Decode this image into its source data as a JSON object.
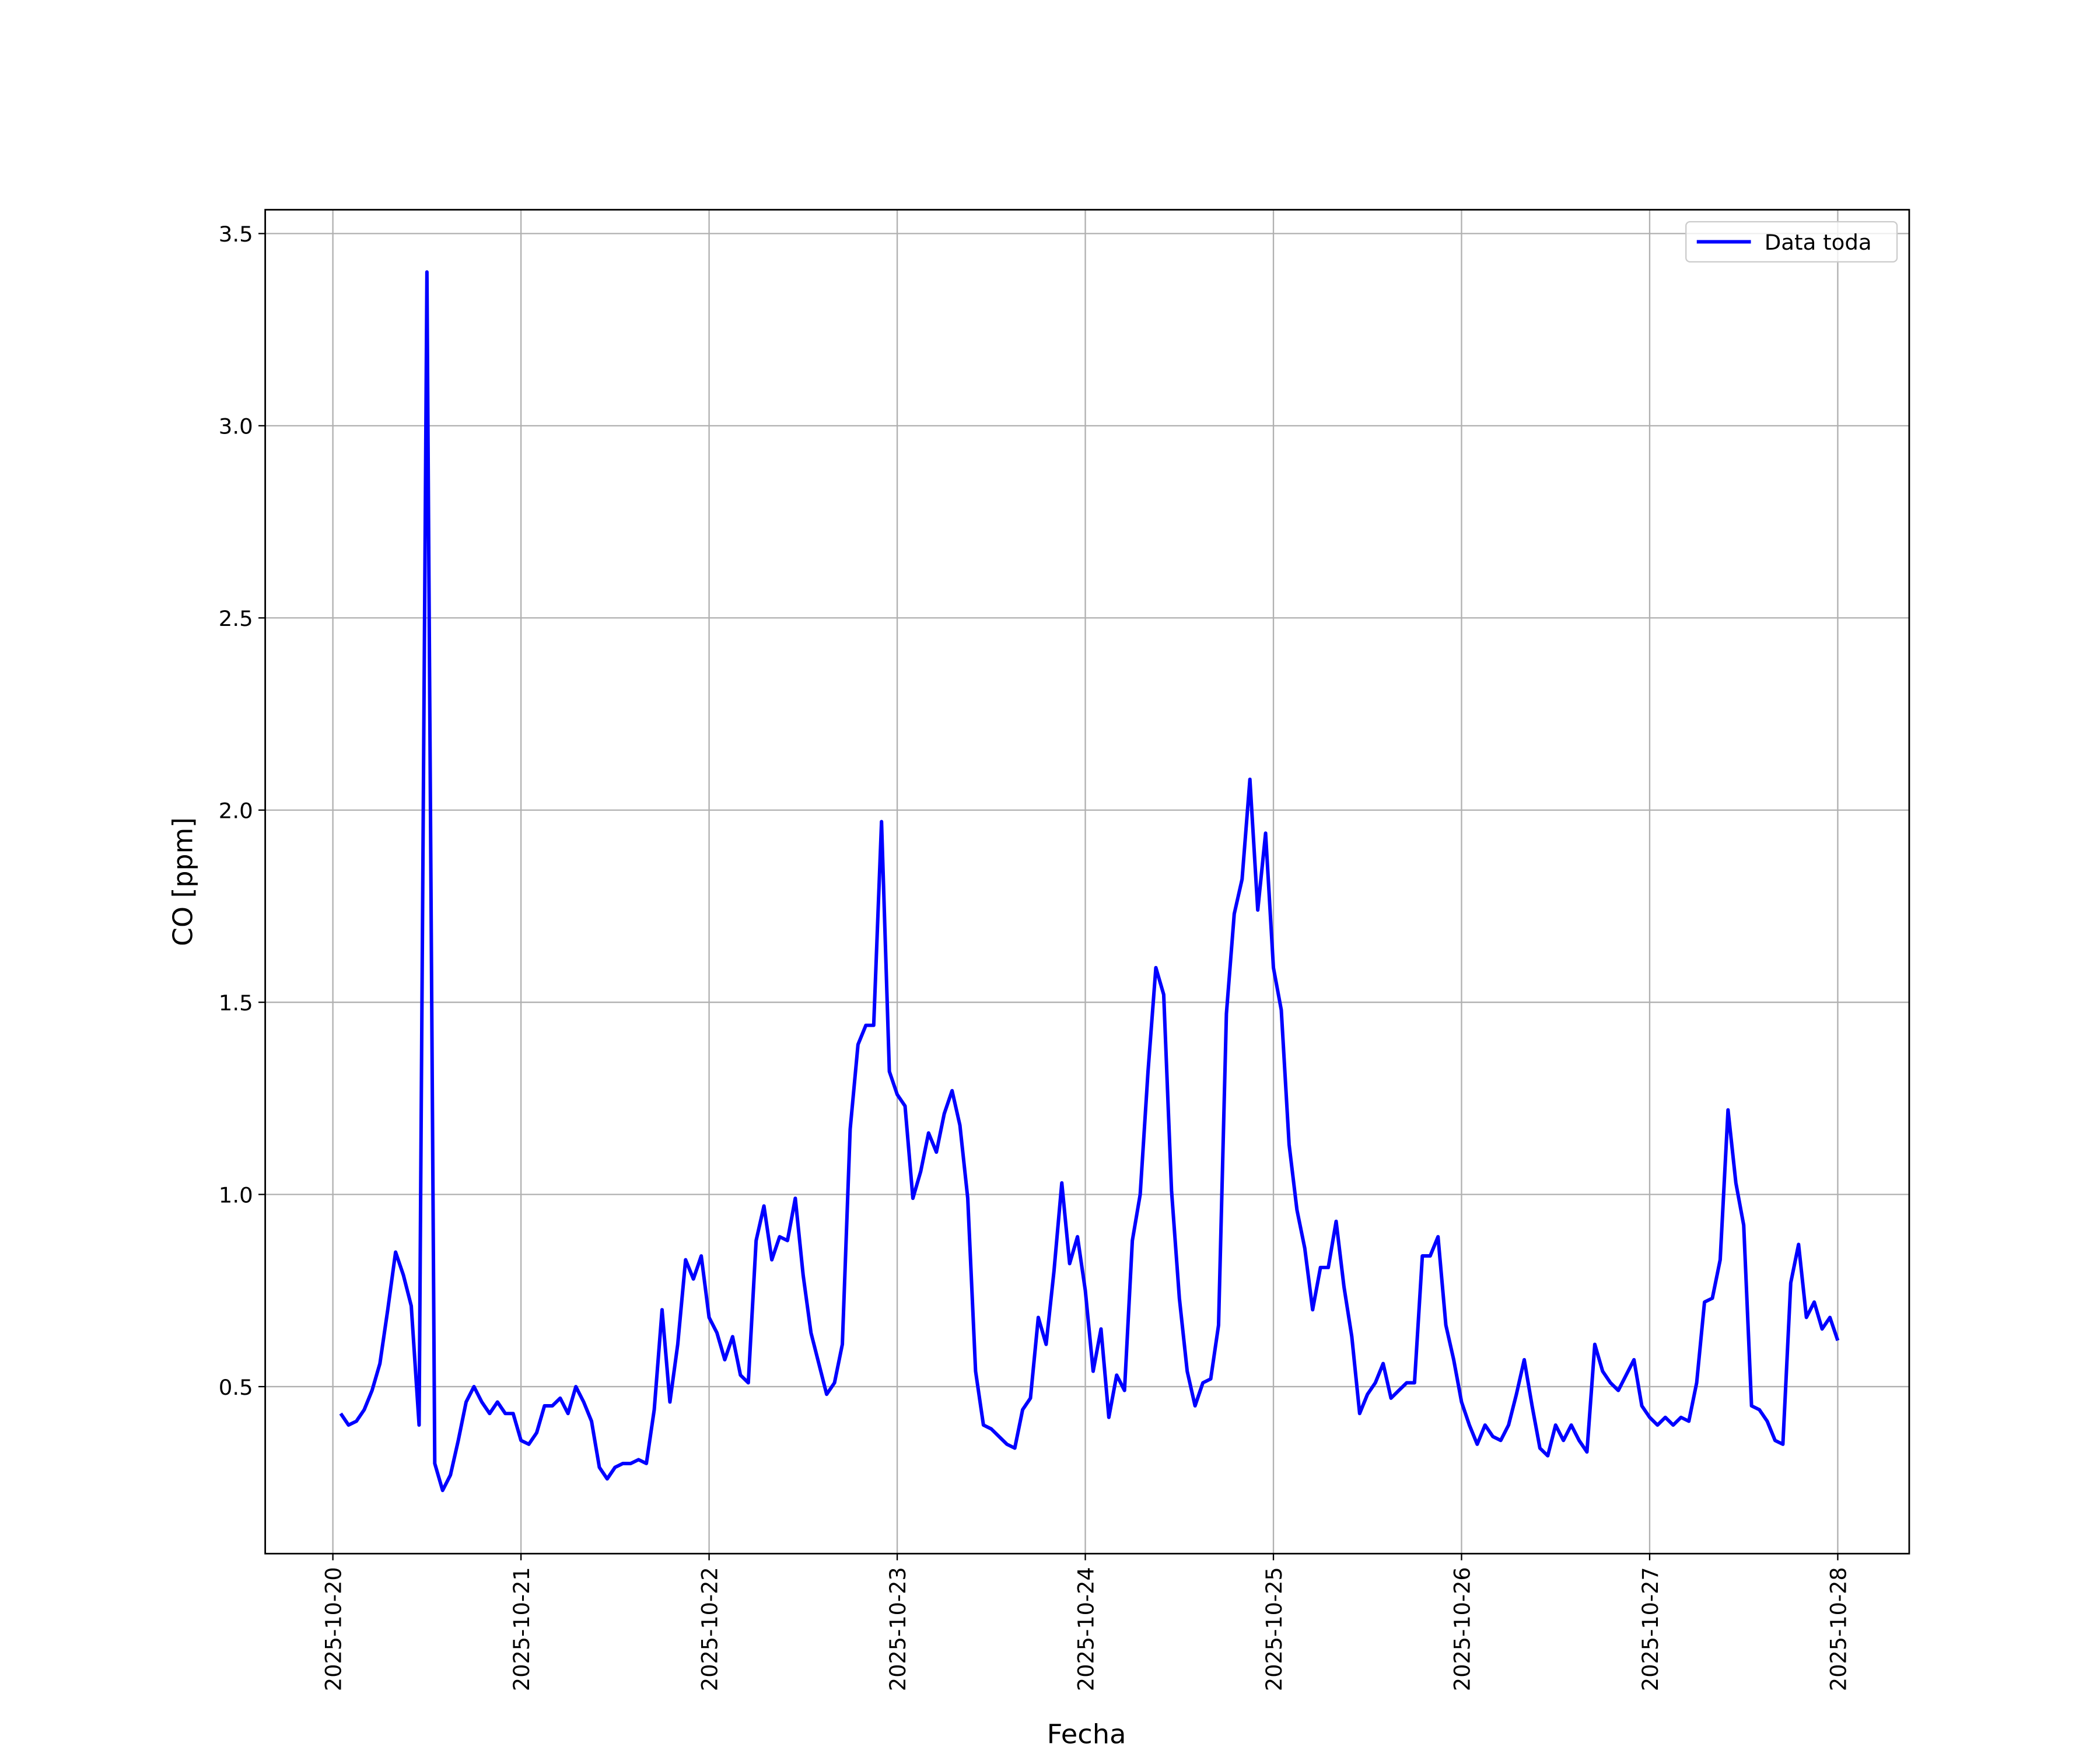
{
  "chart_data": {
    "type": "line",
    "xlabel": "Fecha",
    "ylabel": "CO [ppm]",
    "x": [
      "2025-10-20T01:00",
      "2025-10-20T02:00",
      "2025-10-20T03:00",
      "2025-10-20T04:00",
      "2025-10-20T05:00",
      "2025-10-20T06:00",
      "2025-10-20T07:00",
      "2025-10-20T08:00",
      "2025-10-20T09:00",
      "2025-10-20T10:00",
      "2025-10-20T11:00",
      "2025-10-20T12:00",
      "2025-10-20T13:00",
      "2025-10-20T14:00",
      "2025-10-20T15:00",
      "2025-10-20T16:00",
      "2025-10-20T17:00",
      "2025-10-20T18:00",
      "2025-10-20T19:00",
      "2025-10-20T20:00",
      "2025-10-20T21:00",
      "2025-10-20T22:00",
      "2025-10-20T23:00",
      "2025-10-21T00:00",
      "2025-10-21T01:00",
      "2025-10-21T02:00",
      "2025-10-21T03:00",
      "2025-10-21T04:00",
      "2025-10-21T05:00",
      "2025-10-21T06:00",
      "2025-10-21T07:00",
      "2025-10-21T08:00",
      "2025-10-21T09:00",
      "2025-10-21T10:00",
      "2025-10-21T11:00",
      "2025-10-21T12:00",
      "2025-10-21T13:00",
      "2025-10-21T14:00",
      "2025-10-21T15:00",
      "2025-10-21T16:00",
      "2025-10-21T17:00",
      "2025-10-21T18:00",
      "2025-10-21T19:00",
      "2025-10-21T20:00",
      "2025-10-21T21:00",
      "2025-10-21T22:00",
      "2025-10-21T23:00",
      "2025-10-22T00:00",
      "2025-10-22T01:00",
      "2025-10-22T02:00",
      "2025-10-22T03:00",
      "2025-10-22T04:00",
      "2025-10-22T05:00",
      "2025-10-22T06:00",
      "2025-10-22T07:00",
      "2025-10-22T08:00",
      "2025-10-22T09:00",
      "2025-10-22T10:00",
      "2025-10-22T11:00",
      "2025-10-22T12:00",
      "2025-10-22T13:00",
      "2025-10-22T14:00",
      "2025-10-22T15:00",
      "2025-10-22T16:00",
      "2025-10-22T17:00",
      "2025-10-22T18:00",
      "2025-10-22T19:00",
      "2025-10-22T20:00",
      "2025-10-22T21:00",
      "2025-10-22T22:00",
      "2025-10-22T23:00",
      "2025-10-23T00:00",
      "2025-10-23T01:00",
      "2025-10-23T02:00",
      "2025-10-23T03:00",
      "2025-10-23T04:00",
      "2025-10-23T05:00",
      "2025-10-23T06:00",
      "2025-10-23T07:00",
      "2025-10-23T08:00",
      "2025-10-23T09:00",
      "2025-10-23T10:00",
      "2025-10-23T11:00",
      "2025-10-23T12:00",
      "2025-10-23T13:00",
      "2025-10-23T14:00",
      "2025-10-23T15:00",
      "2025-10-23T16:00",
      "2025-10-23T17:00",
      "2025-10-23T18:00",
      "2025-10-23T19:00",
      "2025-10-23T20:00",
      "2025-10-23T21:00",
      "2025-10-23T22:00",
      "2025-10-23T23:00",
      "2025-10-24T00:00",
      "2025-10-24T01:00",
      "2025-10-24T02:00",
      "2025-10-24T03:00",
      "2025-10-24T04:00",
      "2025-10-24T05:00",
      "2025-10-24T06:00",
      "2025-10-24T07:00",
      "2025-10-24T08:00",
      "2025-10-24T09:00",
      "2025-10-24T10:00",
      "2025-10-24T11:00",
      "2025-10-24T12:00",
      "2025-10-24T13:00",
      "2025-10-24T14:00",
      "2025-10-24T15:00",
      "2025-10-24T16:00",
      "2025-10-24T17:00",
      "2025-10-24T18:00",
      "2025-10-24T19:00",
      "2025-10-24T20:00",
      "2025-10-24T21:00",
      "2025-10-24T22:00",
      "2025-10-24T23:00",
      "2025-10-25T00:00",
      "2025-10-25T01:00",
      "2025-10-25T02:00",
      "2025-10-25T03:00",
      "2025-10-25T04:00",
      "2025-10-25T05:00",
      "2025-10-25T06:00",
      "2025-10-25T07:00",
      "2025-10-25T08:00",
      "2025-10-25T09:00",
      "2025-10-25T10:00",
      "2025-10-25T11:00",
      "2025-10-25T12:00",
      "2025-10-25T13:00",
      "2025-10-25T14:00",
      "2025-10-25T15:00",
      "2025-10-25T16:00",
      "2025-10-25T17:00",
      "2025-10-25T18:00",
      "2025-10-25T19:00",
      "2025-10-25T20:00",
      "2025-10-25T21:00",
      "2025-10-25T22:00",
      "2025-10-25T23:00",
      "2025-10-26T00:00",
      "2025-10-26T01:00",
      "2025-10-26T02:00",
      "2025-10-26T03:00",
      "2025-10-26T04:00",
      "2025-10-26T05:00",
      "2025-10-26T06:00",
      "2025-10-26T07:00",
      "2025-10-26T08:00",
      "2025-10-26T09:00",
      "2025-10-26T10:00",
      "2025-10-26T11:00",
      "2025-10-26T12:00",
      "2025-10-26T13:00",
      "2025-10-26T14:00",
      "2025-10-26T15:00",
      "2025-10-26T16:00",
      "2025-10-26T17:00",
      "2025-10-26T18:00",
      "2025-10-26T19:00",
      "2025-10-26T20:00",
      "2025-10-26T21:00",
      "2025-10-26T22:00",
      "2025-10-26T23:00",
      "2025-10-27T00:00",
      "2025-10-27T01:00",
      "2025-10-27T02:00",
      "2025-10-27T03:00",
      "2025-10-27T04:00",
      "2025-10-27T05:00",
      "2025-10-27T06:00",
      "2025-10-27T07:00",
      "2025-10-27T08:00",
      "2025-10-27T09:00",
      "2025-10-27T10:00",
      "2025-10-27T11:00",
      "2025-10-27T12:00",
      "2025-10-27T13:00",
      "2025-10-27T14:00",
      "2025-10-27T15:00",
      "2025-10-27T16:00",
      "2025-10-27T17:00",
      "2025-10-27T18:00",
      "2025-10-27T19:00",
      "2025-10-27T20:00",
      "2025-10-27T21:00",
      "2025-10-27T22:00",
      "2025-10-27T23:00",
      "2025-10-28T00:00"
    ],
    "series": [
      {
        "name": "Data toda",
        "color": "#0000ff",
        "values": [
          0.43,
          0.4,
          0.41,
          0.44,
          0.49,
          0.56,
          0.7,
          0.85,
          0.79,
          0.71,
          0.4,
          3.4,
          0.3,
          0.23,
          0.27,
          0.36,
          0.46,
          0.5,
          0.46,
          0.43,
          0.46,
          0.43,
          0.43,
          0.36,
          0.35,
          0.38,
          0.45,
          0.45,
          0.47,
          0.43,
          0.5,
          0.46,
          0.41,
          0.29,
          0.26,
          0.29,
          0.3,
          0.3,
          0.31,
          0.3,
          0.44,
          0.7,
          0.46,
          0.61,
          0.83,
          0.78,
          0.84,
          0.68,
          0.64,
          0.57,
          0.63,
          0.53,
          0.51,
          0.88,
          0.97,
          0.83,
          0.89,
          0.88,
          0.99,
          0.79,
          0.64,
          0.56,
          0.48,
          0.51,
          0.61,
          1.17,
          1.39,
          1.44,
          1.44,
          1.97,
          1.32,
          1.26,
          1.23,
          0.99,
          1.06,
          1.16,
          1.11,
          1.21,
          1.27,
          1.18,
          0.99,
          0.54,
          0.4,
          0.39,
          0.37,
          0.35,
          0.34,
          0.44,
          0.47,
          0.68,
          0.61,
          0.8,
          1.03,
          0.82,
          0.89,
          0.75,
          0.54,
          0.65,
          0.42,
          0.53,
          0.49,
          0.88,
          1.0,
          1.32,
          1.59,
          1.52,
          1.01,
          0.73,
          0.54,
          0.45,
          0.51,
          0.52,
          0.66,
          1.47,
          1.73,
          1.82,
          2.08,
          1.74,
          1.94,
          1.59,
          1.48,
          1.13,
          0.96,
          0.86,
          0.7,
          0.81,
          0.81,
          0.93,
          0.76,
          0.63,
          0.43,
          0.48,
          0.51,
          0.56,
          0.47,
          0.49,
          0.51,
          0.51,
          0.84,
          0.84,
          0.89,
          0.66,
          0.57,
          0.46,
          0.4,
          0.35,
          0.4,
          0.37,
          0.36,
          0.4,
          0.48,
          0.57,
          0.45,
          0.34,
          0.32,
          0.4,
          0.36,
          0.4,
          0.36,
          0.33,
          0.61,
          0.54,
          0.51,
          0.49,
          0.53,
          0.57,
          0.45,
          0.42,
          0.4,
          0.42,
          0.4,
          0.42,
          0.41,
          0.51,
          0.72,
          0.73,
          0.83,
          1.22,
          1.03,
          0.92,
          0.45,
          0.44,
          0.41,
          0.36,
          0.35,
          0.77,
          0.87,
          0.68,
          0.72,
          0.65,
          0.68,
          0.62
        ]
      }
    ],
    "xlim": [
      "2025-10-19T15:22",
      "2025-10-28T09:07"
    ],
    "xticks": [
      "2025-10-20",
      "2025-10-21",
      "2025-10-22",
      "2025-10-23",
      "2025-10-24",
      "2025-10-25",
      "2025-10-26",
      "2025-10-27",
      "2025-10-28"
    ],
    "ylim": [
      0.0655,
      3.562
    ],
    "yticks": [
      0.5,
      {
        "value": 1,
        "label": "1.0"
      },
      1.5,
      {
        "value": 2,
        "label": "2.0"
      },
      2.5,
      {
        "value": 3,
        "label": "3.0"
      },
      3.5
    ],
    "grid": true,
    "legend": "upper right"
  }
}
